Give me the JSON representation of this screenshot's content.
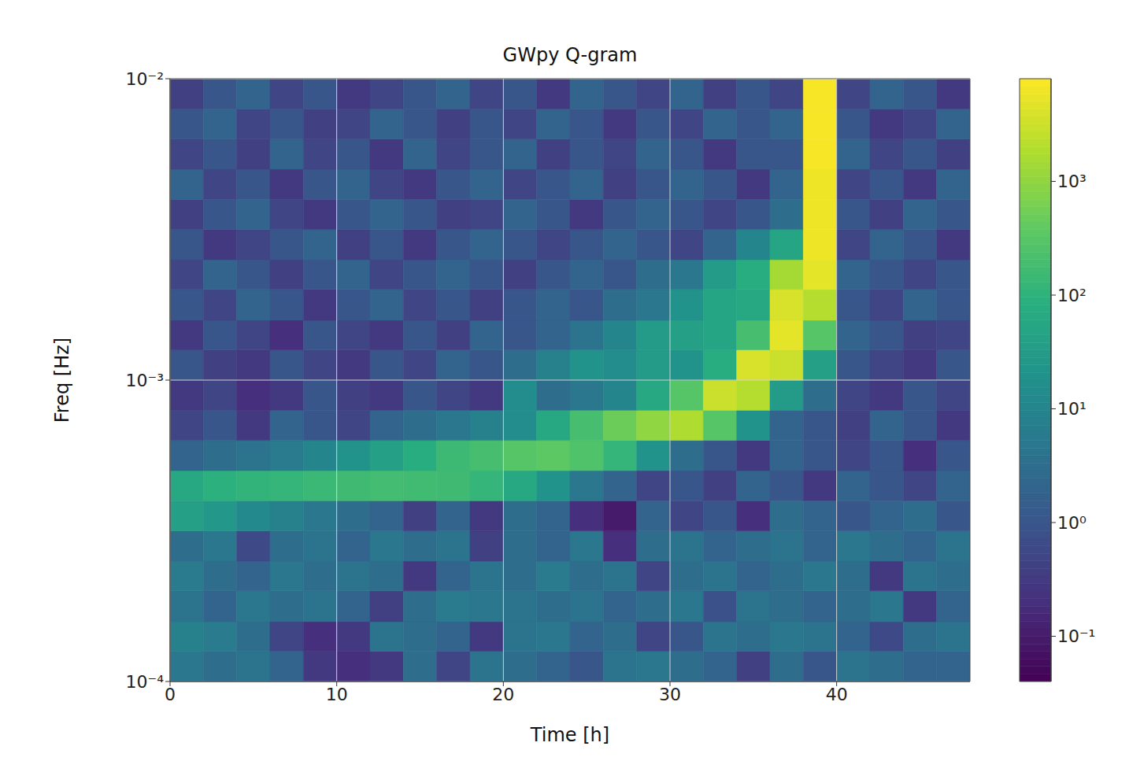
{
  "chart_data": {
    "type": "heatmap",
    "title": "GWpy Q-gram",
    "x_label": "Time [h]",
    "y_label": "Freq [Hz]",
    "xlim": [
      0,
      48
    ],
    "xticks": [
      0,
      10,
      20,
      30,
      40
    ],
    "ylim": [
      0.0001,
      0.01
    ],
    "yticks": [
      {
        "value": 0.0001,
        "label": "10⁻⁴"
      },
      {
        "value": 0.001,
        "label": "10⁻³"
      },
      {
        "value": 0.01,
        "label": "10⁻²"
      }
    ],
    "log": "y",
    "grid": true,
    "x_edges": [
      0,
      2,
      4,
      6,
      8,
      10,
      12,
      14,
      16,
      18,
      20,
      22,
      24,
      26,
      28,
      30,
      32,
      34,
      36,
      38,
      40,
      42,
      44,
      46,
      48
    ],
    "y_edges": [
      0.0001,
      0.000126,
      0.000158,
      0.0002,
      0.000251,
      0.000316,
      0.000398,
      0.000501,
      0.000631,
      0.000794,
      0.001,
      0.00126,
      0.00158,
      0.002,
      0.00251,
      0.00316,
      0.00398,
      0.00501,
      0.00631,
      0.00794,
      0.01
    ],
    "cells": [
      [
        5,
        3,
        4,
        2,
        0.3,
        0.2,
        0.3,
        3,
        0.5,
        4,
        3,
        2,
        1,
        4,
        5,
        3,
        2,
        0.4,
        3,
        1,
        4,
        3,
        2,
        2
      ],
      [
        8,
        6,
        3,
        0.5,
        0.2,
        0.3,
        4,
        3,
        2,
        0.3,
        4,
        5,
        2,
        3,
        0.5,
        1,
        4,
        3,
        5,
        4,
        2,
        0.6,
        3,
        4
      ],
      [
        4,
        2,
        5,
        3,
        4,
        2,
        0.4,
        3,
        6,
        5,
        4,
        3,
        4,
        2,
        3,
        5,
        0.8,
        4,
        3,
        2,
        3,
        5,
        0.3,
        2
      ],
      [
        6,
        3,
        2,
        5,
        3,
        4,
        3,
        0.3,
        2,
        4,
        3,
        6,
        3,
        4,
        0.5,
        3,
        4,
        2,
        3,
        5,
        3,
        0.3,
        4,
        3
      ],
      [
        3,
        5,
        0.6,
        3,
        4,
        2,
        5,
        3,
        4,
        0.4,
        3,
        2,
        5,
        0.2,
        3,
        4,
        2,
        3,
        4,
        2,
        5,
        3,
        2,
        4
      ],
      [
        40,
        25,
        12,
        8,
        5,
        3,
        2,
        0.4,
        2,
        0.3,
        3,
        2,
        0.2,
        0.1,
        2,
        0.5,
        1,
        0.2,
        3,
        2,
        1,
        2,
        3,
        1
      ],
      [
        60,
        90,
        110,
        120,
        140,
        160,
        180,
        170,
        160,
        120,
        60,
        20,
        5,
        2,
        0.5,
        1,
        0.4,
        2,
        1,
        0.3,
        2,
        1,
        0.5,
        2
      ],
      [
        2,
        3,
        4,
        6,
        10,
        20,
        40,
        80,
        150,
        200,
        300,
        350,
        250,
        120,
        20,
        3,
        1,
        0.3,
        2,
        1,
        0.5,
        1,
        0.2,
        1
      ],
      [
        0.5,
        1,
        0.3,
        2,
        1,
        0.5,
        2,
        3,
        5,
        8,
        15,
        60,
        200,
        500,
        1000,
        1800,
        300,
        20,
        2,
        1,
        0.4,
        2,
        1,
        0.3
      ],
      [
        0.3,
        0.5,
        0.2,
        0.3,
        1,
        0.4,
        0.3,
        1,
        0.5,
        0.3,
        15,
        3,
        5,
        10,
        60,
        300,
        3000,
        2000,
        30,
        3,
        0.5,
        0.3,
        1,
        0.5
      ],
      [
        1,
        0.4,
        0.3,
        1,
        0.5,
        0.3,
        1,
        0.5,
        2,
        1,
        3,
        8,
        20,
        15,
        30,
        20,
        80,
        4000,
        3000,
        40,
        1,
        0.5,
        0.3,
        1
      ],
      [
        0.3,
        1,
        0.5,
        0.2,
        1,
        0.5,
        0.3,
        1,
        0.4,
        2,
        1,
        2,
        4,
        10,
        30,
        40,
        50,
        200,
        5000,
        300,
        2,
        1,
        0.4,
        0.5
      ],
      [
        1,
        0.5,
        2,
        1,
        0.3,
        1,
        2,
        0.5,
        1,
        0.4,
        1,
        2,
        1,
        3,
        5,
        20,
        50,
        60,
        4000,
        2000,
        1,
        0.5,
        2,
        1
      ],
      [
        0.5,
        2,
        1,
        0.4,
        1,
        2,
        0.5,
        1,
        2,
        1,
        0.4,
        1,
        2,
        1,
        3,
        5,
        30,
        80,
        1500,
        5000,
        2,
        1,
        0.5,
        1
      ],
      [
        1,
        0.3,
        0.5,
        1,
        2,
        0.4,
        1,
        0.3,
        1,
        2,
        1,
        0.5,
        1,
        2,
        1,
        0.5,
        2,
        10,
        50,
        6000,
        0.5,
        2,
        1,
        0.3
      ],
      [
        0.4,
        1,
        2,
        0.5,
        0.3,
        1,
        2,
        1,
        0.4,
        0.5,
        2,
        1,
        0.3,
        1,
        2,
        1,
        0.5,
        1,
        3,
        6000,
        1,
        0.4,
        2,
        1
      ],
      [
        2,
        0.5,
        1,
        0.3,
        1,
        2,
        0.5,
        0.3,
        1,
        2,
        0.5,
        1,
        2,
        0.4,
        1,
        2,
        1,
        0.3,
        2,
        6000,
        0.5,
        1,
        0.3,
        2
      ],
      [
        0.5,
        1,
        0.4,
        2,
        0.5,
        1,
        0.3,
        2,
        0.5,
        1,
        2,
        0.4,
        1,
        0.5,
        2,
        1,
        0.3,
        1,
        1,
        7000,
        2,
        0.5,
        1,
        0.4
      ],
      [
        1,
        2,
        0.5,
        1,
        0.4,
        0.5,
        2,
        1,
        0.4,
        1,
        0.5,
        2,
        1,
        0.3,
        1,
        0.5,
        2,
        1,
        2,
        7000,
        1,
        0.3,
        0.5,
        2
      ],
      [
        0.4,
        1,
        2,
        0.5,
        1,
        0.3,
        0.5,
        1,
        2,
        0.5,
        1,
        0.3,
        2,
        1,
        0.5,
        2,
        0.4,
        1,
        0.5,
        7000,
        0.5,
        2,
        1,
        0.3
      ]
    ],
    "colorbar": {
      "range": [
        0.04,
        8000
      ],
      "ticks": [
        {
          "value": 0.1,
          "label": "10⁻¹"
        },
        {
          "value": 1,
          "label": "10⁰"
        },
        {
          "value": 10,
          "label": "10¹"
        },
        {
          "value": 100,
          "label": "10²"
        },
        {
          "value": 1000,
          "label": "10³"
        }
      ]
    }
  }
}
